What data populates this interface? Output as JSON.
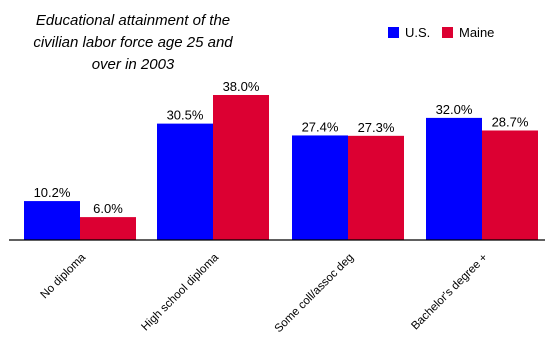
{
  "chart_data": {
    "type": "bar",
    "title_lines": [
      "Educational attainment of the",
      "civilian labor force age 25 and",
      "over in 2003"
    ],
    "categories": [
      "No diploma",
      "High school diploma",
      "Some coll/assoc deg",
      "Bachelor's degree +"
    ],
    "series": [
      {
        "name": "U.S.",
        "color": "#0000ff",
        "values": [
          10.2,
          30.5,
          27.4,
          32.0
        ],
        "labels": [
          "10.2%",
          "30.5%",
          "27.4%",
          "32.0%"
        ]
      },
      {
        "name": "Maine",
        "color": "#dc0032",
        "values": [
          6.0,
          38.0,
          27.3,
          28.7
        ],
        "labels": [
          "6.0%",
          "38.0%",
          "27.3%",
          "28.7%"
        ]
      }
    ],
    "ylim": [
      0,
      38
    ],
    "legend_position": "top-right",
    "grid": false,
    "xlabel": "",
    "ylabel": ""
  }
}
